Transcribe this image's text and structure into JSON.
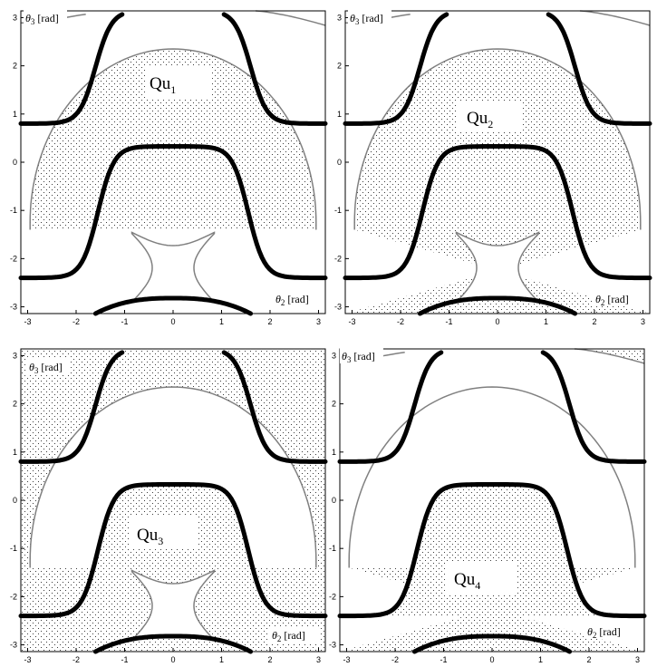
{
  "chart_data": [
    {
      "type": "region-plot",
      "region_label": "Qu",
      "region_sub": "1",
      "xlabel_sym": "θ",
      "xlabel_sub": "2",
      "xlabel_unit": " [rad]",
      "ylabel_sym": "θ",
      "ylabel_sub": "3",
      "ylabel_unit": " [rad]",
      "xlim": [
        -3.14,
        3.14
      ],
      "ylim": [
        -3.14,
        3.14
      ],
      "xticks": [
        -3,
        -2,
        -1,
        0,
        1,
        2,
        3
      ],
      "yticks": [
        -3,
        -2,
        -1,
        0,
        1,
        2,
        3
      ],
      "shaded_region": "inside-central-dome",
      "thin_curves": [
        "dome",
        "lower-star",
        "top-corner-arcs"
      ],
      "thick_curves": [
        "upper-cups",
        "middle-bell",
        "bottom-arc"
      ]
    },
    {
      "type": "region-plot",
      "region_label": "Qu",
      "region_sub": "2",
      "xlabel_sym": "θ",
      "xlabel_sub": "2",
      "xlabel_unit": " [rad]",
      "ylabel_sym": "θ",
      "ylabel_sub": "3",
      "ylabel_unit": " [rad]",
      "xlim": [
        -3.14,
        3.14
      ],
      "ylim": [
        -3.14,
        3.14
      ],
      "xticks": [
        -3,
        -2,
        -1,
        0,
        1,
        2,
        3
      ],
      "yticks": [
        -3,
        -2,
        -1,
        0,
        1,
        2,
        3
      ],
      "shaded_region": "below-dome-outside-star",
      "thin_curves": [
        "dome",
        "lower-star",
        "top-corner-arcs"
      ],
      "thick_curves": [
        "upper-cups",
        "middle-bell",
        "bottom-arc"
      ]
    },
    {
      "type": "region-plot",
      "region_label": "Qu",
      "region_sub": "3",
      "xlabel_sym": "θ",
      "xlabel_sub": "2",
      "xlabel_unit": " [rad]",
      "ylabel_sym": "θ",
      "ylabel_sub": "3",
      "ylabel_unit": " [rad]",
      "xlim": [
        -3.14,
        3.14
      ],
      "ylim": [
        -3.14,
        3.14
      ],
      "xticks": [
        -3,
        -2,
        -1,
        0,
        1,
        2,
        3
      ],
      "yticks": [
        -3,
        -2,
        -1,
        0,
        1,
        2,
        3
      ],
      "shaded_region": "outside-dome-and-inside-bell",
      "thin_curves": [
        "dome",
        "lower-star"
      ],
      "thick_curves": [
        "upper-cups",
        "middle-bell",
        "bottom-arc"
      ]
    },
    {
      "type": "region-plot",
      "region_label": "Qu",
      "region_sub": "4",
      "xlabel_sym": "θ",
      "xlabel_sub": "2",
      "xlabel_unit": " [rad]",
      "ylabel_sym": "θ",
      "ylabel_sub": "3",
      "ylabel_unit": " [rad]",
      "xlim": [
        -3.14,
        3.14
      ],
      "ylim": [
        -3.14,
        3.14
      ],
      "xticks": [
        -3,
        -2,
        -1,
        0,
        1,
        2,
        3
      ],
      "yticks": [
        -3,
        -2,
        -1,
        0,
        1,
        2,
        3
      ],
      "shaded_region": "below-dome-and-top-right-corner",
      "thin_curves": [
        "dome",
        "top-corner-arcs"
      ],
      "thick_curves": [
        "upper-cups",
        "middle-bell",
        "bottom-arc"
      ]
    }
  ],
  "style": {
    "thick_color": "#000000",
    "thin_color": "#808080",
    "dot_color": "#3a3a3a",
    "background": "#ffffff"
  }
}
